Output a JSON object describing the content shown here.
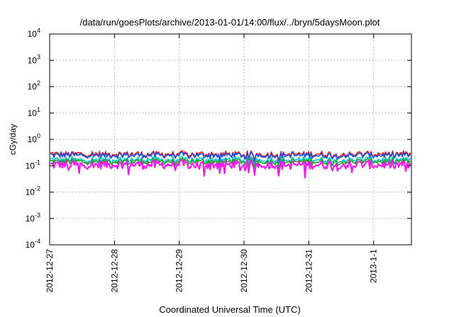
{
  "chart_data": {
    "type": "line",
    "title": "/data/run/goesPlots/archive/2013-01-01/14:00/flux/../bryn/5daysMoon.plot",
    "xlabel": "Coordinated Universal Time (UTC)",
    "ylabel": "cGy/day",
    "yscale": "log",
    "ylim": [
      0.0001,
      10000
    ],
    "xlim": [
      "2012-12-27",
      "2013-01-01T14:00"
    ],
    "grid": true,
    "legend": "none",
    "y_ticks": [
      {
        "base": "10",
        "exp": "-4"
      },
      {
        "base": "10",
        "exp": "-3"
      },
      {
        "base": "10",
        "exp": "-2"
      },
      {
        "base": "10",
        "exp": "-1"
      },
      {
        "base": "10",
        "exp": "0"
      },
      {
        "base": "10",
        "exp": "1"
      },
      {
        "base": "10",
        "exp": "2"
      },
      {
        "base": "10",
        "exp": "3"
      },
      {
        "base": "10",
        "exp": "4"
      }
    ],
    "x_ticks": [
      {
        "date": "2012-12-27",
        "label": "2012-12-27"
      },
      {
        "date": "2012-12-28",
        "label": "2012-12-28"
      },
      {
        "date": "2012-12-29",
        "label": "2012-12-29"
      },
      {
        "date": "2012-12-30",
        "label": "2012-12-30"
      },
      {
        "date": "2012-12-31",
        "label": "2012-12-31"
      },
      {
        "date": "2013-01-01",
        "label": "2013-1-1"
      }
    ],
    "series": [
      {
        "color": "#e02020",
        "level": 0.28
      },
      {
        "color": "#1f4fe0",
        "level": 0.25
      },
      {
        "color": "#00c8c8",
        "level": 0.17
      },
      {
        "color": "#20a020",
        "level": 0.145
      },
      {
        "color": "#ee20ee",
        "level": 0.11
      }
    ]
  }
}
